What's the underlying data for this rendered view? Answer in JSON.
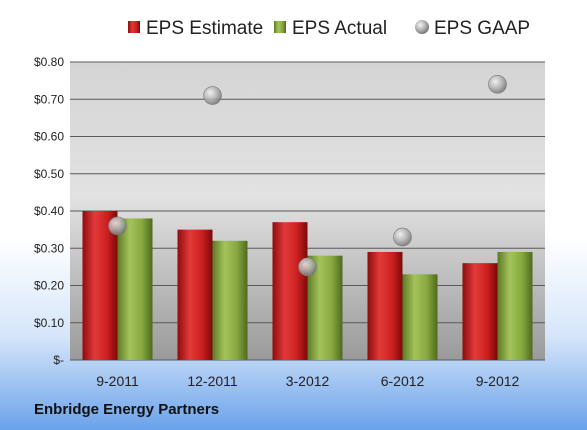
{
  "footer": {
    "company": "Enbridge Energy Partners"
  },
  "colors": {
    "estimate": "#cc2222",
    "actual": "#88aa44",
    "gaap": "#b8b8b8"
  },
  "chart_data": {
    "type": "bar",
    "categories": [
      "9-2011",
      "12-2011",
      "3-2012",
      "6-2012",
      "9-2012"
    ],
    "series": [
      {
        "name": "EPS Estimate",
        "kind": "bar",
        "values": [
          0.4,
          0.35,
          0.37,
          0.29,
          0.26
        ]
      },
      {
        "name": "EPS Actual",
        "kind": "bar",
        "values": [
          0.38,
          0.32,
          0.28,
          0.23,
          0.29
        ]
      },
      {
        "name": "EPS GAAP",
        "kind": "marker",
        "values": [
          0.36,
          0.71,
          0.25,
          0.33,
          0.74
        ]
      }
    ],
    "ylim": [
      0,
      0.8
    ],
    "yticks": [
      0,
      0.1,
      0.2,
      0.3,
      0.4,
      0.5,
      0.6,
      0.7,
      0.8
    ],
    "ytick_labels": [
      "$-",
      "$0.10",
      "$0.20",
      "$0.30",
      "$0.40",
      "$0.50",
      "$0.60",
      "$0.70",
      "$0.80"
    ],
    "grid": true,
    "legend_position": "top"
  }
}
